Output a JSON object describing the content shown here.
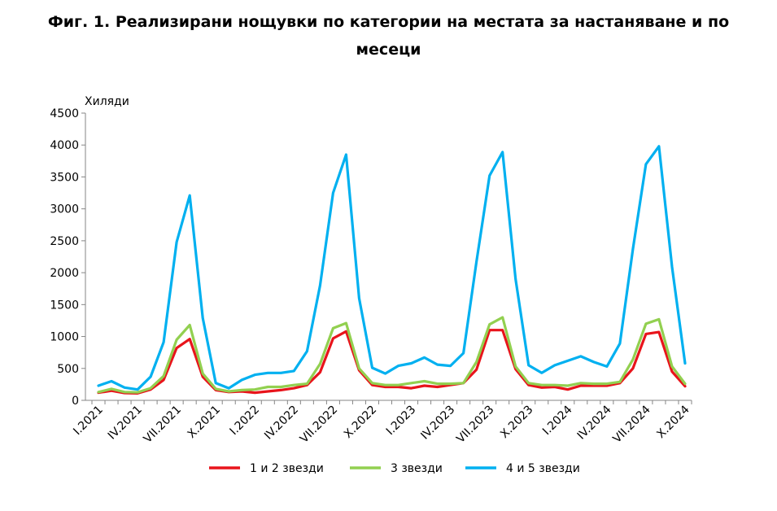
{
  "header": {
    "title_line1": "Фиг. 1. Реализирани нощувки по категории на местата за настаняване и по",
    "title_line2": "месеци"
  },
  "chart_data": {
    "type": "line",
    "title": "Фиг. 1. Реализирани нощувки по категории на местата за настаняване и по месеци",
    "ylabel": "Хиляди",
    "xlabel": "",
    "ylim": [
      0,
      4500
    ],
    "yticks": [
      0,
      500,
      1000,
      1500,
      2000,
      2500,
      3000,
      3500,
      4000,
      4500
    ],
    "grid": false,
    "legend_position": "bottom",
    "x_tick_labels": [
      "I.2021",
      "IV.2021",
      "VII.2021",
      "X.2021",
      "I.2022",
      "IV.2022",
      "VII.2022",
      "X.2022",
      "I.2023",
      "IV.2023",
      "VII.2023",
      "X.2023",
      "I.2024",
      "IV.2024",
      "VII.2024",
      "X.2024"
    ],
    "x_tick_index": [
      0,
      3,
      6,
      9,
      12,
      15,
      18,
      21,
      24,
      27,
      30,
      33,
      36,
      39,
      42,
      45
    ],
    "series": [
      {
        "name": "1 и 2 звезди",
        "color": "#e8141b",
        "values": [
          120,
          150,
          115,
          110,
          170,
          320,
          820,
          960,
          370,
          160,
          130,
          140,
          120,
          140,
          160,
          190,
          240,
          440,
          970,
          1080,
          470,
          240,
          210,
          210,
          190,
          230,
          210,
          240,
          270,
          480,
          1100,
          1100,
          490,
          240,
          200,
          210,
          170,
          230,
          230,
          230,
          270,
          500,
          1040,
          1070,
          450,
          220
        ]
      },
      {
        "name": "3 звезди",
        "color": "#92d050",
        "values": [
          130,
          180,
          130,
          125,
          190,
          380,
          950,
          1180,
          420,
          180,
          140,
          160,
          170,
          210,
          210,
          240,
          260,
          570,
          1130,
          1210,
          500,
          270,
          240,
          240,
          270,
          300,
          260,
          260,
          270,
          600,
          1190,
          1300,
          530,
          270,
          240,
          240,
          230,
          270,
          260,
          260,
          290,
          640,
          1200,
          1270,
          530,
          260
        ]
      },
      {
        "name": "4 и 5 звезди",
        "color": "#00b0f0",
        "values": [
          230,
          300,
          200,
          170,
          370,
          910,
          2480,
          3210,
          1290,
          270,
          190,
          320,
          400,
          430,
          430,
          460,
          770,
          1800,
          3250,
          3850,
          1600,
          510,
          420,
          540,
          580,
          670,
          560,
          540,
          740,
          2170,
          3520,
          3890,
          1900,
          550,
          430,
          550,
          620,
          690,
          600,
          530,
          890,
          2370,
          3700,
          3980,
          2090,
          580
        ]
      }
    ]
  }
}
